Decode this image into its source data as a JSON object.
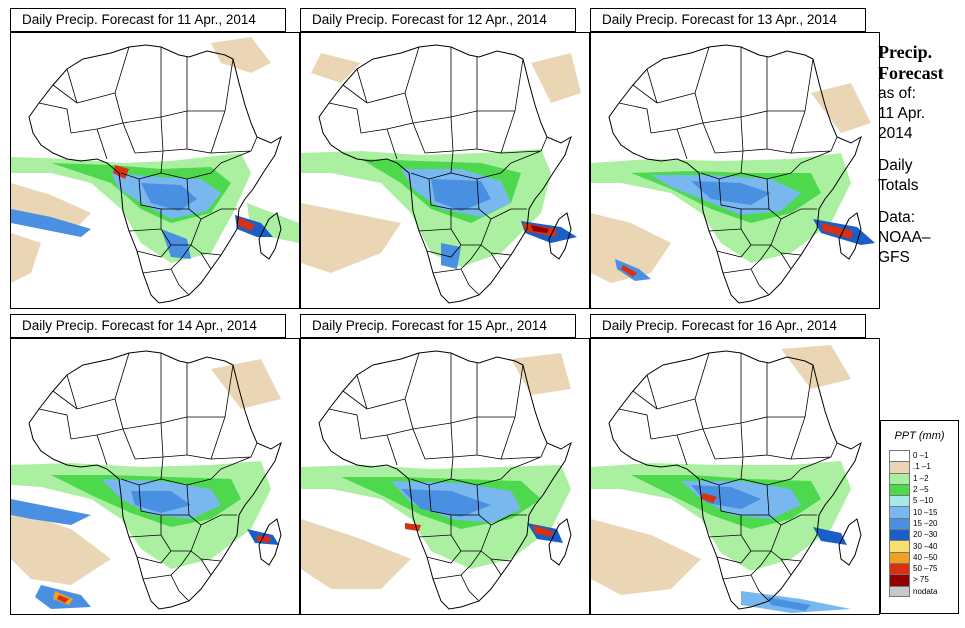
{
  "panels": [
    {
      "title": "Daily Precip. Forecast for  11 Apr., 2014"
    },
    {
      "title": "Daily Precip. Forecast for  12 Apr., 2014"
    },
    {
      "title": "Daily Precip. Forecast for  13 Apr., 2014"
    },
    {
      "title": "Daily Precip. Forecast for  14 Apr., 2014"
    },
    {
      "title": "Daily Precip. Forecast for  15 Apr., 2014"
    },
    {
      "title": "Daily Precip. Forecast for  16 Apr., 2014"
    }
  ],
  "side": {
    "heading_line1": "Precip.",
    "heading_line2": "Forecast",
    "as_of": "as of:",
    "date_line1": "11 Apr.",
    "date_line2": "2014",
    "totals_line1": "Daily",
    "totals_line2": "Totals",
    "data_line1": "Data:",
    "data_line2": "NOAA–",
    "data_line3": "GFS"
  },
  "legend": {
    "title": "PPT (mm)",
    "items": [
      {
        "label": "0 –1",
        "color": "#ffffff"
      },
      {
        "label": ".1 –1",
        "color": "#ead6b4"
      },
      {
        "label": "1 –2",
        "color": "#aaf0a0"
      },
      {
        "label": "2 –5",
        "color": "#4ed84e"
      },
      {
        "label": "5 –10",
        "color": "#a8e8e8"
      },
      {
        "label": "10 –15",
        "color": "#78b8ee"
      },
      {
        "label": "15 –20",
        "color": "#4a90e2"
      },
      {
        "label": "20 –30",
        "color": "#1a5ec8"
      },
      {
        "label": "30 –40",
        "color": "#f8e070"
      },
      {
        "label": "40 –50",
        "color": "#f0a020"
      },
      {
        "label": "50 –75",
        "color": "#d83010"
      },
      {
        "label": "> 75",
        "color": "#900000"
      },
      {
        "label": "nodata",
        "color": "#c8c8c8"
      }
    ]
  }
}
